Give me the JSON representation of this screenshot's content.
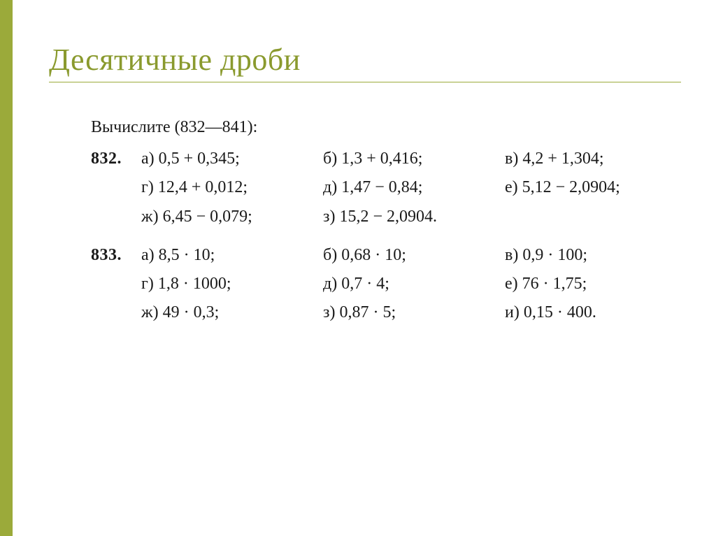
{
  "accent_color": "#9baa3a",
  "title_color": "#8a9a2e",
  "text_color": "#1a1a1a",
  "background_color": "#ffffff",
  "title": "Десятичные дроби",
  "title_fontsize": 44,
  "body_fontsize": 24,
  "instruction": "Вычислите (832—841):",
  "problems": [
    {
      "number": "832.",
      "items": [
        "а)  0,5 + 0,345;",
        "б)  1,3 + 0,416;",
        "в)  4,2 + 1,304;",
        "г)  12,4 + 0,012;",
        "д)  1,47 − 0,84;",
        "е)  5,12 − 2,0904;",
        "ж)  6,45 − 0,079;",
        "з)  15,2 − 2,0904.",
        ""
      ]
    },
    {
      "number": "833.",
      "items": [
        "а)  8,5 · 10;",
        "б)  0,68 · 10;",
        "в)  0,9 · 100;",
        "г)  1,8 · 1000;",
        "д)  0,7 · 4;",
        "е)  76 · 1,75;",
        "ж)  49 · 0,3;",
        "з)  0,87 · 5;",
        "и)  0,15 · 400."
      ]
    }
  ]
}
